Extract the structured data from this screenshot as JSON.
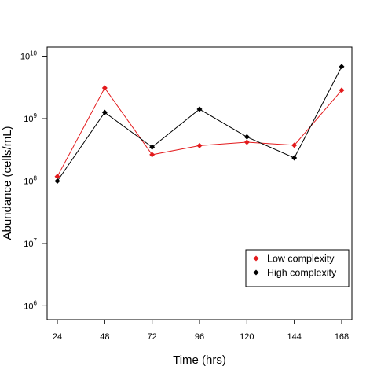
{
  "chart_data": {
    "type": "line",
    "title": "",
    "xlabel": "Time (hrs)",
    "ylabel": "Abundance (cells/mL)",
    "x": [
      24,
      48,
      72,
      96,
      120,
      144,
      168
    ],
    "x_tick_labels": [
      "24",
      "48",
      "72",
      "96",
      "120",
      "144",
      "168"
    ],
    "y_scale": "log10",
    "ylim": [
      600000,
      14000000000
    ],
    "y_ticks": [
      {
        "value": 1000000,
        "base": "10",
        "exp": "6"
      },
      {
        "value": 10000000,
        "base": "10",
        "exp": "7"
      },
      {
        "value": 100000000,
        "base": "10",
        "exp": "8"
      },
      {
        "value": 1000000000,
        "base": "10",
        "exp": "9"
      },
      {
        "value": 10000000000,
        "base": "10",
        "exp": "10"
      }
    ],
    "grid": false,
    "legend_position": "bottom-right",
    "series": [
      {
        "name": "Low complexity",
        "color": "#e31a1c",
        "marker": "diamond",
        "values": [
          118000000,
          3100000000,
          265000000,
          370000000,
          420000000,
          375000000,
          2850000000
        ]
      },
      {
        "name": "High complexity",
        "color": "#000000",
        "marker": "diamond",
        "values": [
          100000000,
          1260000000,
          350000000,
          1420000000,
          510000000,
          235000000,
          6800000000
        ]
      }
    ]
  }
}
